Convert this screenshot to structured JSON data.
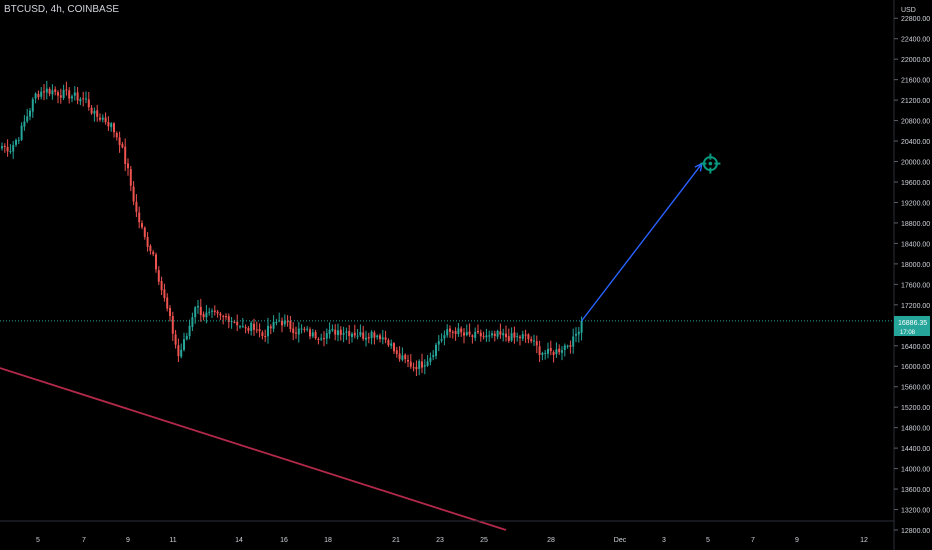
{
  "header": {
    "title": "BTCUSD, 4h, COINBASE"
  },
  "price_tag": {
    "price": "16886.35",
    "countdown": "17:08"
  },
  "colors": {
    "up": "#26a69a",
    "down": "#ef5350",
    "trendline": "#b2294a",
    "arrow": "#2962ff",
    "target": "#089981"
  },
  "chart_data": {
    "type": "candlestick",
    "symbol": "BTCUSD",
    "interval": "4h",
    "exchange": "COINBASE",
    "currency": "USD",
    "ylim": [
      12800,
      23000
    ],
    "y_ticks": [
      12800,
      13200,
      13600,
      14000,
      14400,
      14800,
      15200,
      15600,
      16000,
      16400,
      16800,
      17200,
      17600,
      18000,
      18400,
      18800,
      19200,
      19600,
      20000,
      20400,
      20800,
      21200,
      21600,
      22000,
      22400,
      22800
    ],
    "y_tick_labels": [
      "12800.00",
      "13200.00",
      "13600.00",
      "14000.00",
      "14400.00",
      "14800.00",
      "15200.00",
      "15600.00",
      "16000.00",
      "16400.00",
      "16800.00",
      "17200.00",
      "17600.00",
      "18000.00",
      "18400.00",
      "18800.00",
      "19200.00",
      "19600.00",
      "20000.00",
      "20400.00",
      "20800.00",
      "21200.00",
      "21600.00",
      "22000.00",
      "22400.00",
      "22800.00"
    ],
    "x_tick_labels": [
      "5",
      "7",
      "9",
      "11",
      "14",
      "16",
      "18",
      "21",
      "23",
      "25",
      "28",
      "Dec",
      "3",
      "5",
      "7",
      "9",
      "12"
    ],
    "last_price": 16886.35,
    "close_path": [
      [
        0,
        20300
      ],
      [
        3,
        20250
      ],
      [
        6,
        20500
      ],
      [
        9,
        20900
      ],
      [
        12,
        21300
      ],
      [
        15,
        21400
      ],
      [
        18,
        21380
      ],
      [
        21,
        21330
      ],
      [
        24,
        21300
      ],
      [
        27,
        21250
      ],
      [
        30,
        21200
      ],
      [
        33,
        20900
      ],
      [
        36,
        20850
      ],
      [
        39,
        20700
      ],
      [
        42,
        20400
      ],
      [
        45,
        19800
      ],
      [
        48,
        19000
      ],
      [
        51,
        18500
      ],
      [
        54,
        18200
      ],
      [
        57,
        17500
      ],
      [
        60,
        16900
      ],
      [
        63,
        16200
      ],
      [
        66,
        16600
      ],
      [
        69,
        17200
      ],
      [
        72,
        17000
      ],
      [
        75,
        17000
      ],
      [
        78,
        16950
      ],
      [
        81,
        16950
      ],
      [
        84,
        16850
      ],
      [
        87,
        16700
      ],
      [
        90,
        16800
      ],
      [
        93,
        16600
      ],
      [
        96,
        16750
      ],
      [
        99,
        16900
      ],
      [
        102,
        16800
      ],
      [
        105,
        16700
      ],
      [
        108,
        16700
      ],
      [
        111,
        16600
      ],
      [
        114,
        16620
      ],
      [
        117,
        16650
      ],
      [
        120,
        16700
      ],
      [
        123,
        16680
      ],
      [
        126,
        16650
      ],
      [
        129,
        16600
      ],
      [
        132,
        16650
      ],
      [
        135,
        16600
      ],
      [
        138,
        16500
      ],
      [
        141,
        16200
      ],
      [
        144,
        16100
      ],
      [
        147,
        16000
      ],
      [
        150,
        16050
      ],
      [
        153,
        16200
      ],
      [
        156,
        16500
      ],
      [
        159,
        16650
      ],
      [
        162,
        16700
      ],
      [
        165,
        16600
      ],
      [
        168,
        16580
      ],
      [
        171,
        16600
      ],
      [
        174,
        16550
      ],
      [
        177,
        16600
      ],
      [
        180,
        16580
      ],
      [
        183,
        16550
      ],
      [
        186,
        16580
      ],
      [
        189,
        16500
      ],
      [
        192,
        16300
      ],
      [
        195,
        16250
      ],
      [
        198,
        16300
      ],
      [
        201,
        16400
      ],
      [
        204,
        16500
      ],
      [
        207,
        16886.35
      ]
    ],
    "annotations": [
      {
        "type": "trendline",
        "from": [
          -1,
          15970
        ],
        "to": [
          180,
          12800
        ]
      },
      {
        "type": "arrow",
        "from": [
          207,
          16886.35
        ],
        "to": [
          250,
          19960
        ]
      },
      {
        "type": "target",
        "at": [
          253,
          19960
        ]
      }
    ]
  }
}
